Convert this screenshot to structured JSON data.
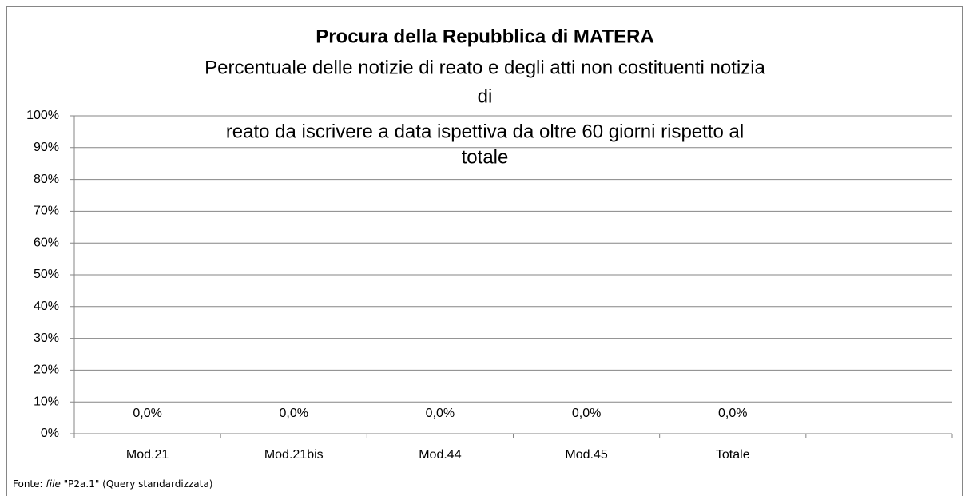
{
  "chart_data": {
    "type": "bar",
    "title": "Procura della Repubblica di MATERA",
    "subtitle": [
      "Percentuale delle notizie di reato e degli atti non costituenti notizia",
      "di",
      "reato da iscrivere a data ispettiva da oltre 60 giorni rispetto al",
      "totale"
    ],
    "categories": [
      "Mod.21",
      "Mod.21bis",
      "Mod.44",
      "Mod.45",
      "Totale",
      null
    ],
    "values": [
      0,
      0,
      0,
      0,
      0,
      null
    ],
    "value_labels": [
      "0,0%",
      "0,0%",
      "0,0%",
      "0,0%",
      "0,0%",
      null
    ],
    "color": "#4f81bd",
    "ylim": [
      0,
      100
    ],
    "yticks": [
      {
        "value": 0,
        "label": "0%"
      },
      {
        "value": 10,
        "label": "10%"
      },
      {
        "value": 20,
        "label": "20%"
      },
      {
        "value": 30,
        "label": "30%"
      },
      {
        "value": 40,
        "label": "40%"
      },
      {
        "value": 50,
        "label": "50%"
      },
      {
        "value": 60,
        "label": "60%"
      },
      {
        "value": 70,
        "label": "70%"
      },
      {
        "value": 80,
        "label": "80%"
      },
      {
        "value": 90,
        "label": "90%"
      },
      {
        "value": 100,
        "label": "100%"
      }
    ],
    "grid": true,
    "source": [
      "Fonte: ",
      "file",
      " \"P2a.1\" (Query standardizzata)"
    ]
  }
}
